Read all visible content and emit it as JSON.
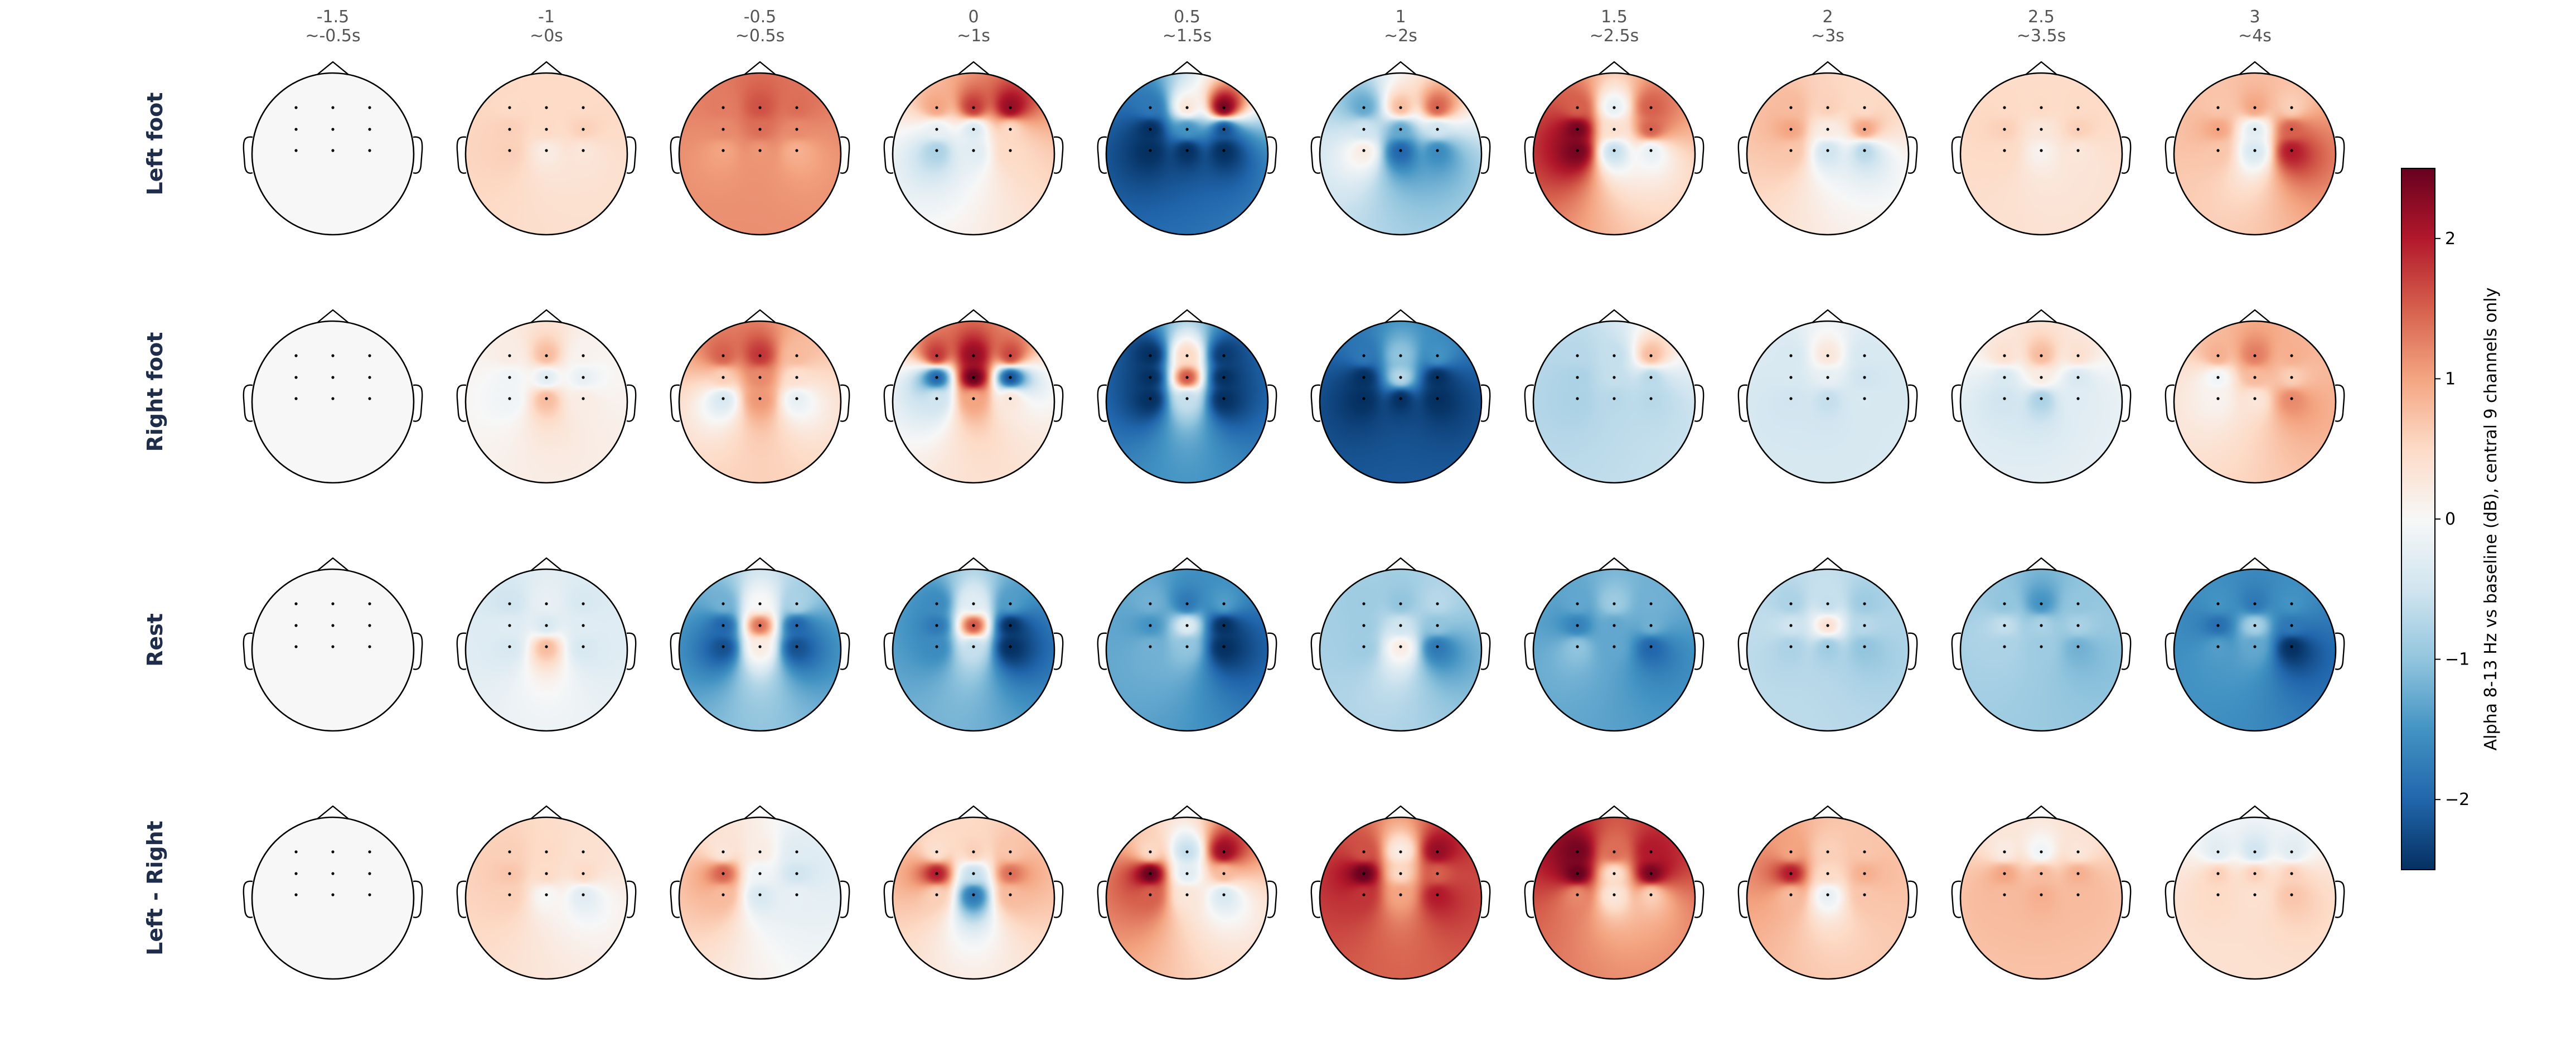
{
  "chart_data": {
    "type": "heatmap",
    "subtype": "eeg-topomap-grid",
    "electrodes": [
      {
        "row": 0,
        "col": 0
      },
      {
        "row": 0,
        "col": 1
      },
      {
        "row": 0,
        "col": 2
      },
      {
        "row": 1,
        "col": 0
      },
      {
        "row": 1,
        "col": 1
      },
      {
        "row": 1,
        "col": 2
      },
      {
        "row": 2,
        "col": 0
      },
      {
        "row": 2,
        "col": 1
      },
      {
        "row": 2,
        "col": 2
      }
    ],
    "columns": [
      {
        "time": "-1.5",
        "approx": "~-0.5s"
      },
      {
        "time": "-1",
        "approx": "~0s"
      },
      {
        "time": "-0.5",
        "approx": "~0.5s"
      },
      {
        "time": "0",
        "approx": "~1s"
      },
      {
        "time": "0.5",
        "approx": "~1.5s"
      },
      {
        "time": "1",
        "approx": "~2s"
      },
      {
        "time": "1.5",
        "approx": "~2.5s"
      },
      {
        "time": "2",
        "approx": "~3s"
      },
      {
        "time": "2.5",
        "approx": "~3.5s"
      },
      {
        "time": "3",
        "approx": "~4s"
      }
    ],
    "rows": [
      {
        "label": "Left foot",
        "maps": [
          [
            0,
            0,
            0,
            0,
            0,
            0,
            0,
            0,
            0
          ],
          [
            0.5,
            0.5,
            0.5,
            0.6,
            0.5,
            0.6,
            0.6,
            0.2,
            0.3
          ],
          [
            1.3,
            1.6,
            1.4,
            1.2,
            1.4,
            1.2,
            1.0,
            1.1,
            0.9
          ],
          [
            1.0,
            1.8,
            2.2,
            -0.2,
            -0.4,
            0.5,
            -0.8,
            -0.3,
            0.5
          ],
          [
            -1.8,
            0.3,
            2.4,
            -2.5,
            -1.5,
            -2.2,
            -2.5,
            -2.5,
            -2.5
          ],
          [
            -1.3,
            0.8,
            1.5,
            -0.5,
            -1.3,
            -0.5,
            0.2,
            -2.0,
            -1.6
          ],
          [
            1.5,
            -0.2,
            1.5,
            2.4,
            0.4,
            1.5,
            2.4,
            -0.6,
            -0.2
          ],
          [
            0.8,
            0.6,
            0.5,
            1.0,
            0.2,
            1.0,
            0.7,
            -0.5,
            -0.7
          ],
          [
            0.5,
            0.5,
            0.5,
            0.6,
            0.3,
            0.6,
            0.5,
            0.1,
            0.3
          ],
          [
            0.7,
            1.0,
            0.6,
            1.0,
            -0.3,
            1.5,
            0.7,
            -0.4,
            2.0
          ]
        ]
      },
      {
        "label": "Right foot",
        "maps": [
          [
            0,
            0,
            0,
            0,
            0,
            0,
            0,
            0,
            0
          ],
          [
            0.2,
            0.8,
            0.1,
            -0.1,
            -0.3,
            -0.2,
            -0.1,
            0.8,
            0.2
          ],
          [
            1.5,
            1.8,
            0.8,
            0.6,
            1.2,
            0.4,
            -0.4,
            1.1,
            -0.2
          ],
          [
            1.8,
            2.2,
            1.7,
            -2.0,
            2.5,
            -2.2,
            -0.5,
            1.0,
            0.3
          ],
          [
            -2.5,
            0.5,
            -2.4,
            -2.5,
            1.6,
            -2.5,
            -2.5,
            -0.6,
            -2.5
          ],
          [
            -1.8,
            -1.0,
            -1.5,
            -2.5,
            -0.7,
            -2.5,
            -2.5,
            -2.5,
            -2.5
          ],
          [
            -0.7,
            -0.6,
            0.8,
            -0.8,
            -0.6,
            -0.7,
            -0.8,
            -0.7,
            -0.7
          ],
          [
            -0.4,
            0.3,
            -0.4,
            -0.4,
            -0.2,
            -0.5,
            -0.5,
            -0.6,
            -0.4
          ],
          [
            0.4,
            0.8,
            0.4,
            -0.4,
            0.2,
            -0.4,
            -0.5,
            -0.8,
            -0.3
          ],
          [
            0.9,
            1.3,
            0.9,
            -0.1,
            0.8,
            0.6,
            0.1,
            0.3,
            1.2
          ]
        ]
      },
      {
        "label": "Rest",
        "maps": [
          [
            0,
            0,
            0,
            0,
            0,
            0,
            0,
            0,
            0
          ],
          [
            -0.5,
            -0.2,
            -0.4,
            -0.3,
            -0.4,
            -0.3,
            -0.4,
            0.8,
            -0.4
          ],
          [
            -1.2,
            0.0,
            -0.8,
            -2.0,
            1.4,
            -2.0,
            -2.2,
            0.2,
            -2.2
          ],
          [
            -1.6,
            -0.3,
            -1.4,
            -1.8,
            1.6,
            -2.5,
            -1.6,
            -0.6,
            -2.5
          ],
          [
            -1.2,
            -1.8,
            -1.4,
            -1.5,
            -0.3,
            -2.5,
            -1.2,
            -1.0,
            -2.5
          ],
          [
            -0.9,
            -1.0,
            -0.7,
            -0.9,
            -0.5,
            -1.0,
            -0.9,
            0.2,
            -1.8
          ],
          [
            -1.3,
            -0.9,
            -1.2,
            -1.7,
            -1.3,
            -1.2,
            -1.0,
            -1.3,
            -2.0
          ],
          [
            -0.8,
            -0.6,
            -0.9,
            -0.5,
            0.4,
            -0.7,
            -0.8,
            -0.9,
            -1.0
          ],
          [
            -1.0,
            -1.5,
            -1.0,
            -0.6,
            -0.8,
            -0.8,
            -0.8,
            -0.9,
            -1.2
          ],
          [
            -1.5,
            -1.8,
            -1.5,
            -1.9,
            -0.8,
            -1.8,
            -1.4,
            -1.3,
            -2.5
          ]
        ]
      },
      {
        "label": "Left - Right",
        "maps": [
          [
            0,
            0,
            0,
            0,
            0,
            0,
            0,
            0,
            0
          ],
          [
            0.6,
            0.5,
            0.4,
            0.7,
            0.5,
            0.5,
            0.6,
            0.0,
            -0.3
          ],
          [
            0.3,
            0.2,
            -0.3,
            1.5,
            -0.1,
            -0.5,
            0.8,
            -0.4,
            -0.2
          ],
          [
            0.4,
            0.6,
            0.7,
            2.0,
            -0.6,
            1.4,
            0.6,
            -1.8,
            0.8
          ],
          [
            0.5,
            -0.6,
            2.2,
            2.5,
            -0.3,
            0.8,
            1.5,
            0.3,
            -0.4
          ],
          [
            1.6,
            0.2,
            2.2,
            2.5,
            0.5,
            1.5,
            1.8,
            1.0,
            2.0
          ],
          [
            2.4,
            1.4,
            2.0,
            2.5,
            0.4,
            2.4,
            1.2,
            0.3,
            0.6
          ],
          [
            1.0,
            0.6,
            0.7,
            2.0,
            0.5,
            0.9,
            0.8,
            -0.2,
            0.7
          ],
          [
            0.2,
            -0.1,
            0.3,
            1.0,
            0.8,
            0.9,
            0.8,
            0.9,
            0.8
          ],
          [
            -0.3,
            -0.5,
            -0.3,
            0.6,
            0.6,
            0.6,
            0.5,
            0.4,
            0.7
          ]
        ]
      }
    ],
    "colorbar": {
      "label": "Alpha 8-13 Hz vs baseline (dB), central 9 channels only",
      "range": [
        -2.5,
        2.5
      ],
      "ticks": [
        "2",
        "1",
        "0",
        "−1",
        "−2"
      ],
      "colormap": "RdBu_r"
    },
    "colors": {
      "low": "#053061",
      "mid": "#f7f7f7",
      "high": "#67001f",
      "outline": "#000000",
      "label_text": "#1f2d4a",
      "column_text": "#555555"
    }
  }
}
